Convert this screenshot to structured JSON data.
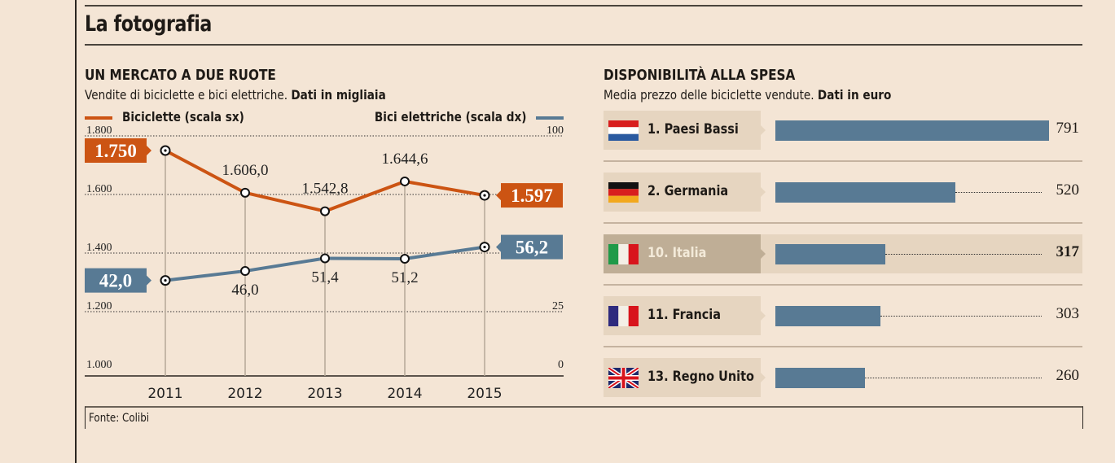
{
  "page": {
    "title": "La fotografia",
    "source": "Fonte: Colibi"
  },
  "colors": {
    "background": "#f4e5d5",
    "orange": "#cc5413",
    "blue": "#587a94",
    "row_bg": "#e6d5c0",
    "highlight_bg": "#bfae96"
  },
  "chart_data": [
    {
      "type": "line",
      "title": "UN MERCATO A DUE RUOTE",
      "subtitle": "Vendite di biciclette e bici elettriche.",
      "subtitle_bold": "Dati in migliaia",
      "x": [
        "2011",
        "2012",
        "2013",
        "2014",
        "2015"
      ],
      "series": [
        {
          "name": "Biciclette (scala sx)",
          "axis": "left",
          "color": "#cc5413",
          "values": [
            1750,
            1606.0,
            1542.8,
            1644.6,
            1597
          ],
          "labels": [
            "1.750",
            "1.606,0",
            "1.542,8",
            "1.644,6",
            "1.597"
          ]
        },
        {
          "name": "Bici elettriche (scala dx)",
          "axis": "right",
          "color": "#587a94",
          "values": [
            42.0,
            46.0,
            51.4,
            51.2,
            56.2
          ],
          "labels": [
            "42,0",
            "46,0",
            "51,4",
            "51,2",
            "56,2"
          ]
        }
      ],
      "y_left": {
        "ylim": [
          1000,
          1800
        ],
        "ticks": [
          1000,
          1200,
          1400,
          1600,
          1800
        ],
        "tick_labels": [
          "1.000",
          "1.200",
          "1.400",
          "1.600",
          "1.800"
        ]
      },
      "y_right": {
        "ylim": [
          0,
          100
        ],
        "tick_labels_shown": [
          {
            "value": 0,
            "label": "0"
          },
          {
            "value": 25,
            "label": "25"
          },
          {
            "value": 100,
            "label": "100"
          }
        ]
      },
      "grid": true,
      "legend": "top"
    },
    {
      "type": "bar",
      "orientation": "horizontal",
      "title": "DISPONIBILITÀ ALLA SPESA",
      "subtitle": "Media prezzo delle biciclette vendute.",
      "subtitle_bold": "Dati in euro",
      "categories": [
        "1. Paesi Bassi",
        "2. Germania",
        "10. Italia",
        "11. Francia",
        "13. Regno Unito"
      ],
      "flags": [
        "netherlands-flag",
        "germany-flag",
        "italy-flag",
        "france-flag",
        "uk-flag"
      ],
      "values": [
        791,
        520,
        317,
        303,
        260
      ],
      "highlighted": "10. Italia",
      "xlim": [
        0,
        791
      ]
    }
  ]
}
